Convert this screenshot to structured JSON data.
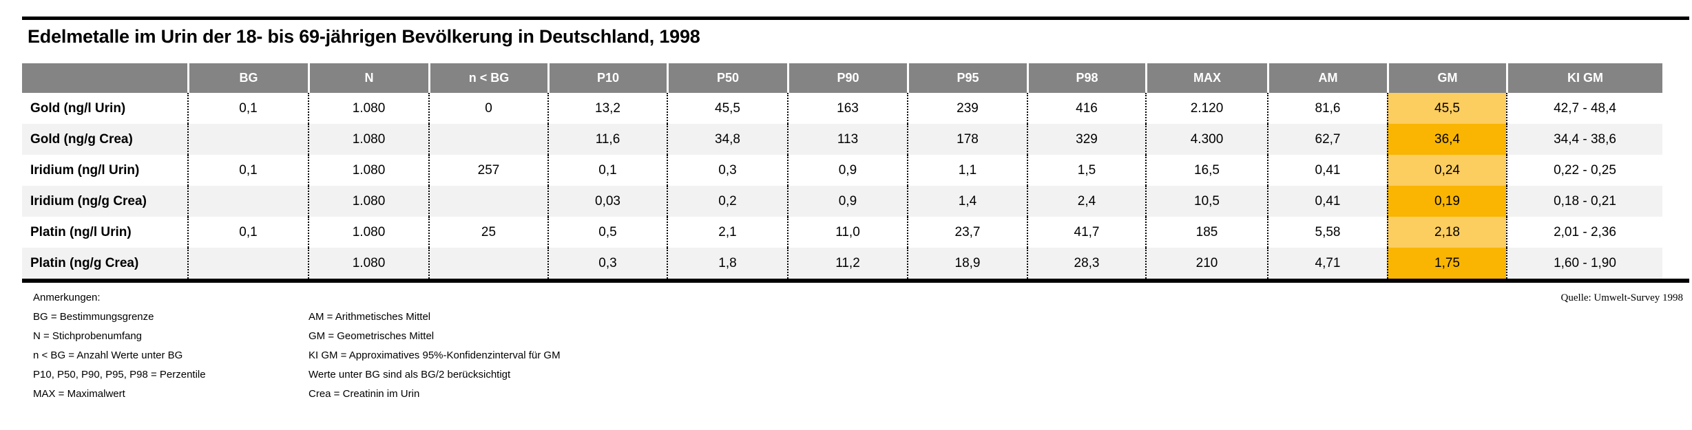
{
  "title": "Edelmetalle im Urin der 18- bis 69-jährigen Bevölkerung in Deutschland, 1998",
  "source": "Quelle: Umwelt-Survey 1998",
  "table": {
    "columns": [
      "",
      "BG",
      "N",
      "n < BG",
      "P10",
      "P50",
      "P90",
      "P95",
      "P98",
      "MAX",
      "AM",
      "GM",
      "KI GM"
    ],
    "highlight_column": "GM",
    "rows": [
      {
        "label": "Gold (ng/l Urin)",
        "values": [
          "0,1",
          "1.080",
          "0",
          "13,2",
          "45,5",
          "163",
          "239",
          "416",
          "2.120",
          "81,6",
          "45,5",
          "42,7 - 48,4"
        ]
      },
      {
        "label": "Gold (ng/g Crea)",
        "values": [
          "",
          "1.080",
          "",
          "11,6",
          "34,8",
          "113",
          "178",
          "329",
          "4.300",
          "62,7",
          "36,4",
          "34,4 - 38,6"
        ]
      },
      {
        "label": "Iridium (ng/l Urin)",
        "values": [
          "0,1",
          "1.080",
          "257",
          "0,1",
          "0,3",
          "0,9",
          "1,1",
          "1,5",
          "16,5",
          "0,41",
          "0,24",
          "0,22 - 0,25"
        ]
      },
      {
        "label": "Iridium (ng/g Crea)",
        "values": [
          "",
          "1.080",
          "",
          "0,03",
          "0,2",
          "0,9",
          "1,4",
          "2,4",
          "10,5",
          "0,41",
          "0,19",
          "0,18 - 0,21"
        ]
      },
      {
        "label": "Platin (ng/l Urin)",
        "values": [
          "0,1",
          "1.080",
          "25",
          "0,5",
          "2,1",
          "11,0",
          "23,7",
          "41,7",
          "185",
          "5,58",
          "2,18",
          "2,01 - 2,36"
        ]
      },
      {
        "label": "Platin (ng/g Crea)",
        "values": [
          "",
          "1.080",
          "",
          "0,3",
          "1,8",
          "11,2",
          "18,9",
          "28,3",
          "210",
          "4,71",
          "1,75",
          "1,60 - 1,90"
        ]
      }
    ]
  },
  "notes": {
    "heading": "Anmerkungen:",
    "left": [
      "BG = Bestimmungsgrenze",
      "N = Stichprobenumfang",
      "n < BG = Anzahl Werte unter BG",
      "P10, P50, P90, P95, P98 = Perzentile",
      "MAX = Maximalwert"
    ],
    "right": [
      "AM = Arithmetisches Mittel",
      "GM = Geometrisches Mittel",
      "KI GM = Approximatives 95%-Konfidenzinterval für GM",
      "Werte unter BG sind als BG/2 berücksichtigt",
      "Crea = Creatinin im Urin"
    ]
  },
  "colors": {
    "header_bg": "#848484",
    "row_alt_bg": "#F2F2F2",
    "gm_light": "#FCCD5F",
    "gm_dark": "#F9B502"
  }
}
